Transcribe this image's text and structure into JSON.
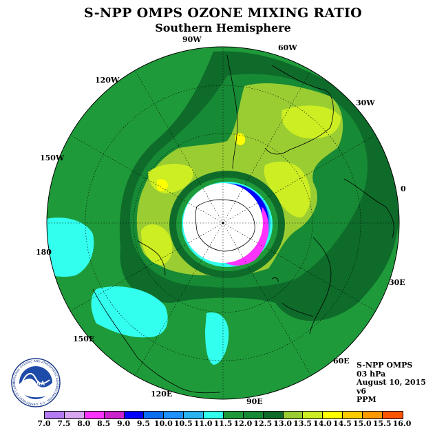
{
  "header": {
    "title": "S-NPP OMPS OZONE MIXING RATIO",
    "subtitle": "Southern Hemisphere"
  },
  "map": {
    "projection": "polar stereographic (south pole)",
    "longitude_labels": {
      "lon_0": "0",
      "lon_30w": "30W",
      "lon_60w": "60W",
      "lon_90w": "90W",
      "lon_120w": "120W",
      "lon_150w": "150W",
      "lon_180": "180",
      "lon_150e": "150E",
      "lon_120e": "120E",
      "lon_90e": "90E",
      "lon_60e": "60E",
      "lon_30e": "30E"
    },
    "data_description": "ozone mixing ratio contours"
  },
  "info": {
    "instrument": "S-NPP OMPS",
    "level": "03 hPa",
    "date": "August 10, 2015",
    "version": "v6",
    "units": "PPM"
  },
  "colorbar": {
    "labels": [
      "7.0",
      "7.5",
      "8.0",
      "8.5",
      "9.0",
      "9.5",
      "10.0",
      "10.5",
      "11.0",
      "11.5",
      "12.0",
      "12.5",
      "13.0",
      "13.5",
      "14.0",
      "14.5",
      "15.0",
      "15.5",
      "16.0"
    ],
    "colors": [
      "#b57cf2",
      "#d9a6f2",
      "#ff33ff",
      "#cc22cc",
      "#0000ff",
      "#0a6ef0",
      "#1e90ff",
      "#2ab4f0",
      "#33ffee",
      "#1f9a3a",
      "#178a35",
      "#0e6b2a",
      "#9acd32",
      "#ccee22",
      "#ffff00",
      "#ffcc00",
      "#ff9900",
      "#ff5500",
      "#ff0000",
      "#8b5a2b"
    ]
  },
  "logo": {
    "text": "NOAA",
    "ring_text": "NATIONAL OCEANIC AND ATMOSPHERIC ADMINISTRATION · U.S. DEPARTMENT OF COMMERCE"
  }
}
